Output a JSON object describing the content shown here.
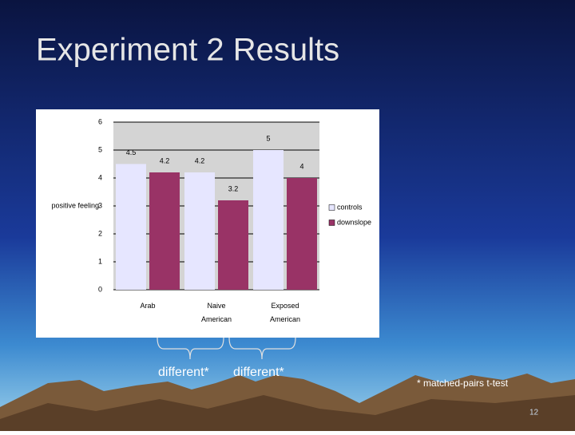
{
  "slide": {
    "title": "Experiment 2 Results",
    "annotations": [
      "different*",
      "different*"
    ],
    "footnote": "* matched-pairs t-test",
    "page_number": "12"
  },
  "chart_data": {
    "type": "bar",
    "y_label": "positive feeling",
    "categories": [
      "Arab",
      "Naive American",
      "Exposed American"
    ],
    "series": [
      {
        "name": "controls",
        "color": "#e6e6ff",
        "values": [
          4.5,
          4.2,
          5
        ]
      },
      {
        "name": "downslope",
        "color": "#993366",
        "values": [
          4.2,
          3.2,
          4
        ]
      }
    ],
    "ylim": [
      0,
      6
    ],
    "yticks": [
      0,
      1,
      2,
      3,
      4,
      5,
      6
    ],
    "grid": true,
    "legend": "right"
  }
}
